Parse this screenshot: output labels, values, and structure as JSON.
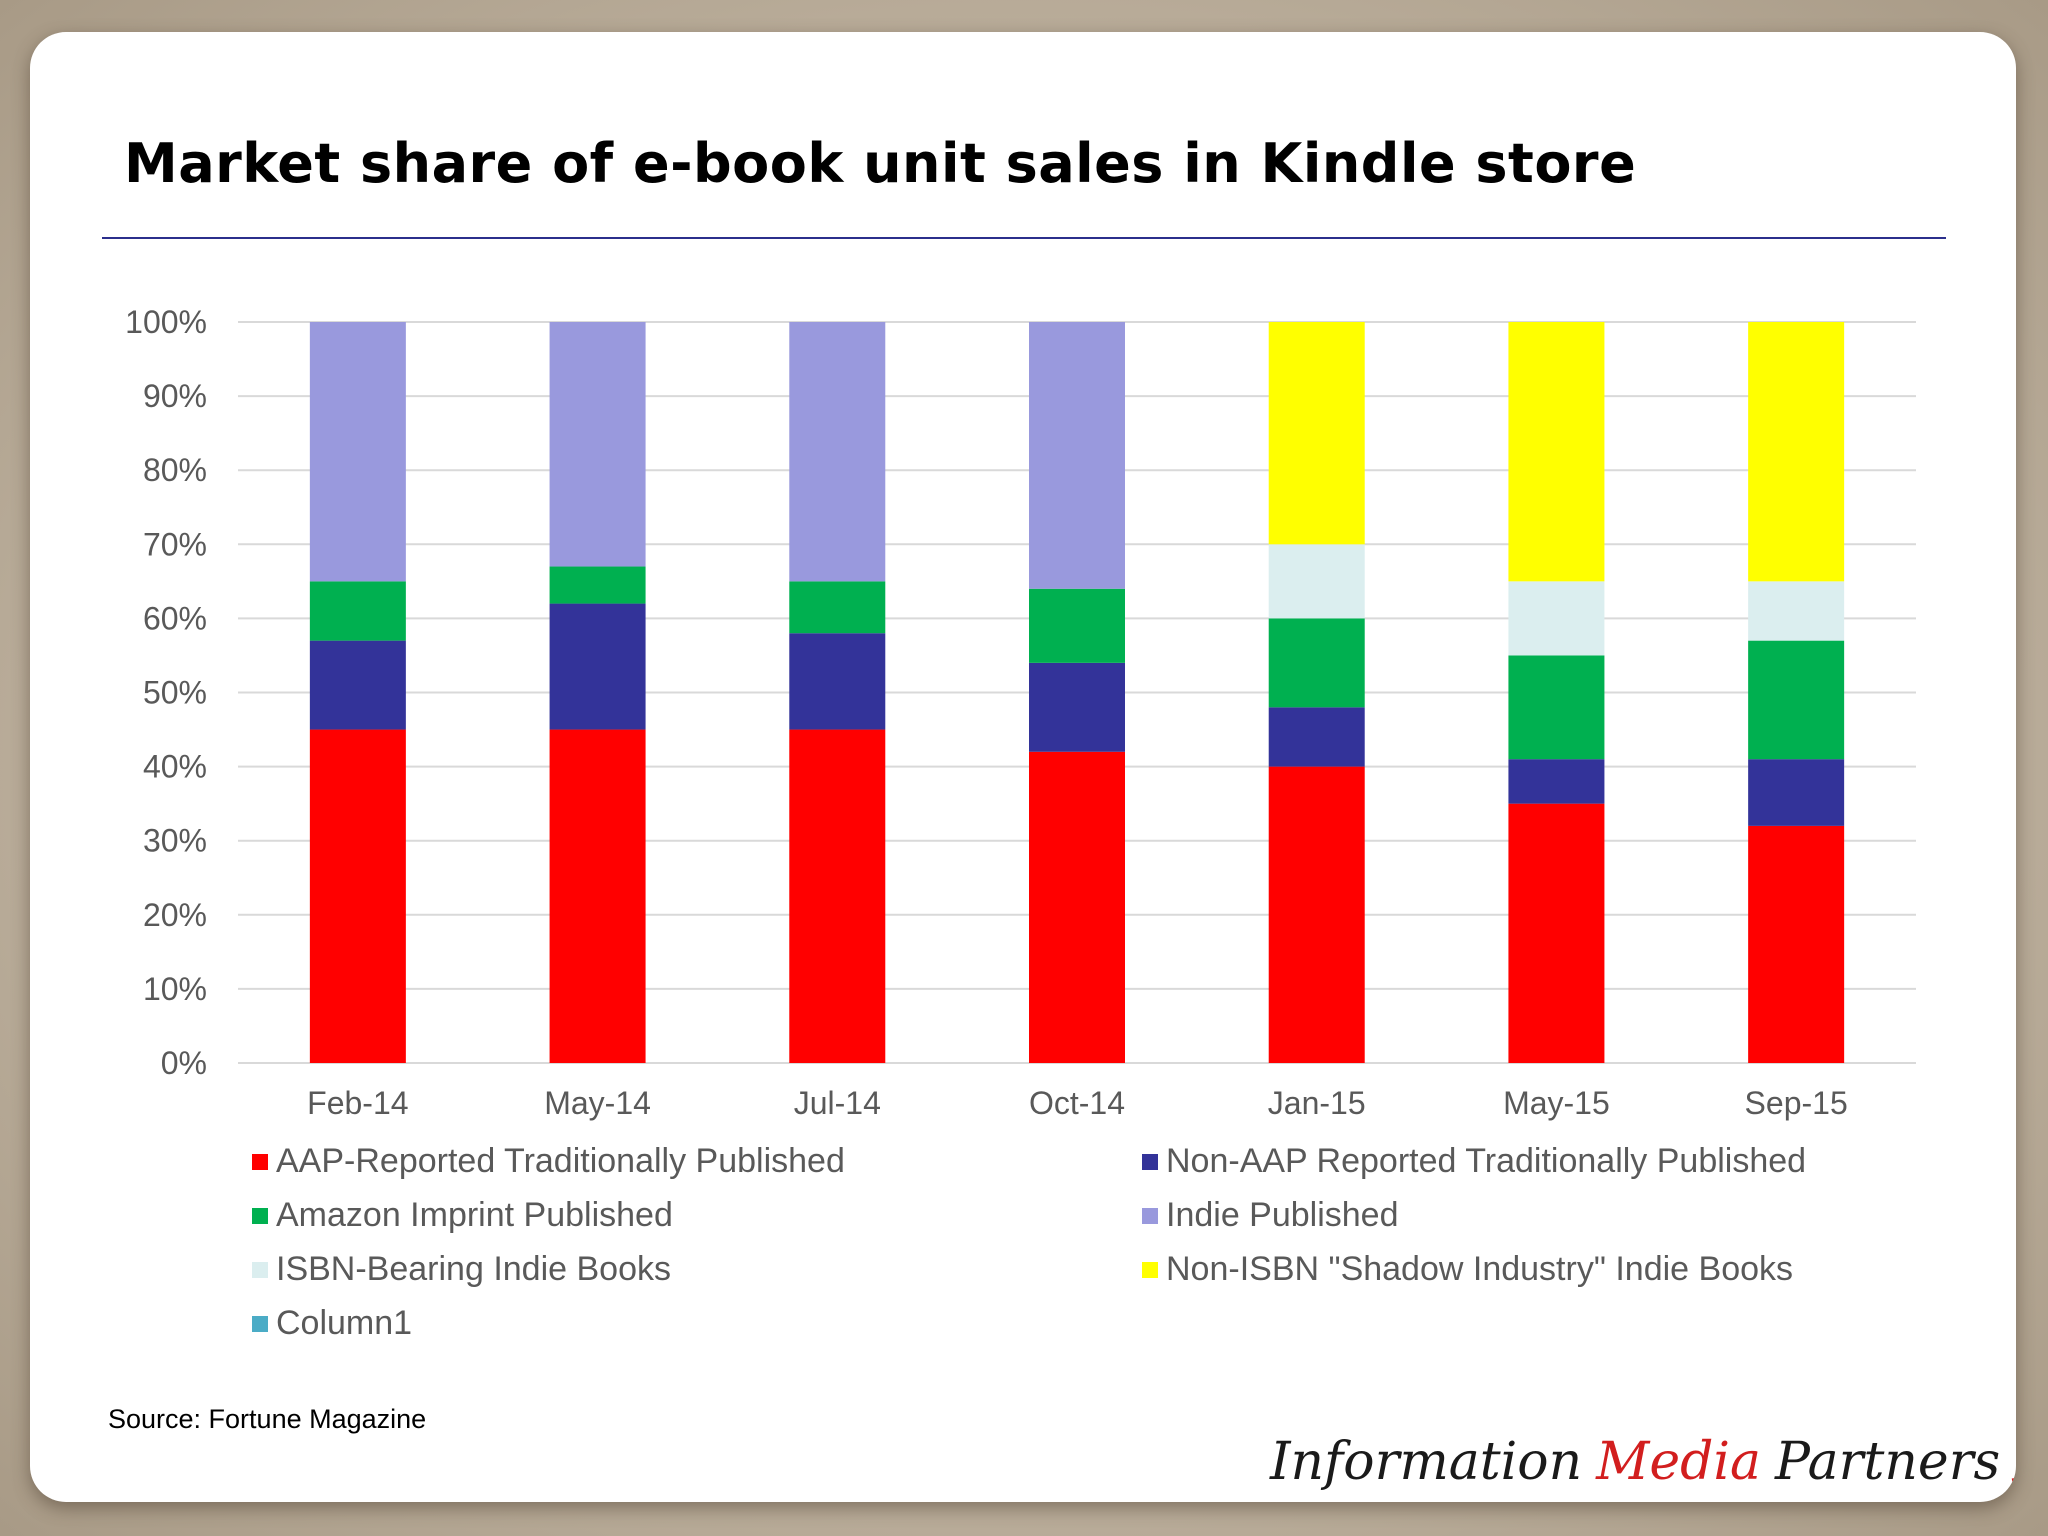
{
  "title": "Market share of e-book unit sales in Kindle store",
  "source": "Source: Fortune Magazine",
  "logo": {
    "word1": "Information",
    "word2": "Media",
    "word3": "Partners",
    "mark_icon": "stylized-i-swoosh-icon"
  },
  "colors": {
    "aap": "#ff0000",
    "non_aap": "#333399",
    "amazon": "#00b050",
    "indie": "#9999dd",
    "isbn_indie": "#dbeeef",
    "non_isbn": "#ffff00",
    "column1": "#4bacc6",
    "title_rule": "#2b2f8c"
  },
  "chart_data": {
    "type": "bar",
    "stacked": true,
    "percent": true,
    "title": "Market share of e-book unit sales in Kindle store",
    "categories": [
      "Feb-14",
      "May-14",
      "Jul-14",
      "Oct-14",
      "Jan-15",
      "May-15",
      "Sep-15"
    ],
    "ylim": [
      0,
      100
    ],
    "yticks": [
      "0%",
      "10%",
      "20%",
      "30%",
      "40%",
      "50%",
      "60%",
      "70%",
      "80%",
      "90%",
      "100%"
    ],
    "grid": true,
    "legend_position": "bottom",
    "series": [
      {
        "name": "AAP-Reported Traditionally Published",
        "color": "#ff0000",
        "values": [
          45,
          45,
          45,
          42,
          40,
          35,
          32
        ]
      },
      {
        "name": "Non-AAP Reported Traditionally Published",
        "color": "#333399",
        "values": [
          12,
          17,
          13,
          12,
          8,
          6,
          9
        ]
      },
      {
        "name": "Amazon Imprint Published",
        "color": "#00b050",
        "values": [
          8,
          5,
          7,
          10,
          12,
          14,
          16
        ]
      },
      {
        "name": "Indie Published",
        "color": "#9999dd",
        "values": [
          35,
          33,
          35,
          36,
          0,
          0,
          0
        ]
      },
      {
        "name": "ISBN-Bearing Indie Books",
        "color": "#dbeeef",
        "values": [
          0,
          0,
          0,
          0,
          10,
          10,
          8
        ]
      },
      {
        "name": "Non-ISBN \"Shadow Industry\" Indie Books",
        "color": "#ffff00",
        "values": [
          0,
          0,
          0,
          0,
          30,
          35,
          35
        ]
      },
      {
        "name": "Column1",
        "color": "#4bacc6",
        "values": [
          0,
          0,
          0,
          0,
          0,
          0,
          0
        ]
      }
    ]
  }
}
